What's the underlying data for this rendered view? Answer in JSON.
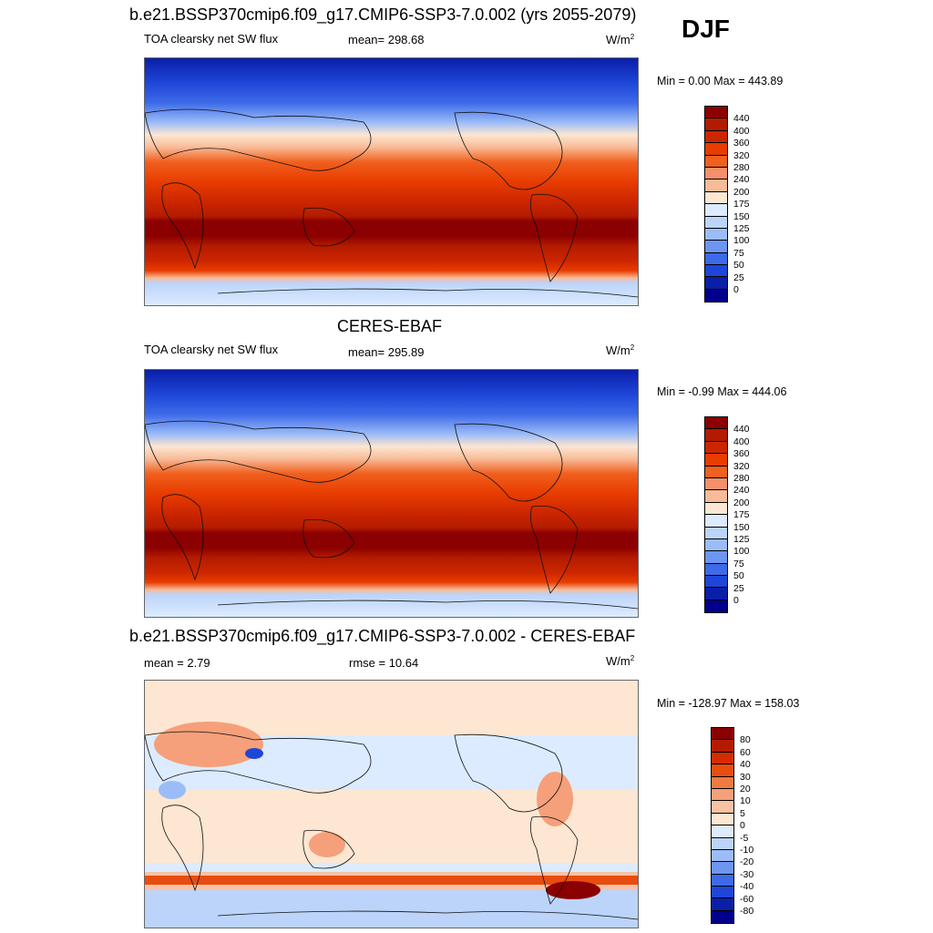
{
  "season": "DJF",
  "panel1": {
    "title": "b.e21.BSSP370cmip6.f09_g17.CMIP6-SSP3-7.0.002 (yrs 2055-2079)",
    "variable": "TOA clearsky net SW flux",
    "mean": "mean= 298.68",
    "units": "W/m",
    "units_sup": "2",
    "minmax": "Min =   0.00 Max = 443.89"
  },
  "panel2": {
    "title": "CERES-EBAF",
    "variable": "TOA clearsky net SW flux",
    "mean": "mean= 295.89",
    "units": "W/m",
    "units_sup": "2",
    "minmax": "Min =  -0.99 Max = 444.06"
  },
  "panel3": {
    "title": "b.e21.BSSP370cmip6.f09_g17.CMIP6-SSP3-7.0.002 - CERES-EBAF",
    "mean": "mean =   2.79",
    "rmse": "rmse =  10.64",
    "units": "W/m",
    "units_sup": "2",
    "minmax": "Min = -128.97 Max = 158.03"
  },
  "colorbar_abs": {
    "labels": [
      "440",
      "400",
      "360",
      "320",
      "280",
      "240",
      "200",
      "175",
      "150",
      "125",
      "100",
      "75",
      "50",
      "25",
      "0"
    ],
    "colors": [
      "#8b0000",
      "#b31b00",
      "#cc2600",
      "#e83c00",
      "#f0601e",
      "#f5906a",
      "#f8bb97",
      "#fde6d2",
      "#dcebff",
      "#bcd4fa",
      "#9bbcf8",
      "#6d96f2",
      "#3d6ae8",
      "#1e46d8",
      "#0a1ea8",
      "#00008b"
    ]
  },
  "colorbar_diff": {
    "labels": [
      "80",
      "60",
      "40",
      "30",
      "20",
      "10",
      "5",
      "0",
      "-5",
      "-10",
      "-20",
      "-30",
      "-40",
      "-60",
      "-80"
    ],
    "colors": [
      "#8b0000",
      "#b31b00",
      "#d42c00",
      "#e84d10",
      "#f07a40",
      "#f5a07a",
      "#f8c2a3",
      "#fde6d2",
      "#dcebff",
      "#bcd4fa",
      "#9bbcf8",
      "#6d96f2",
      "#3d6ae8",
      "#1e46d8",
      "#0a1ea8",
      "#00008b"
    ]
  }
}
